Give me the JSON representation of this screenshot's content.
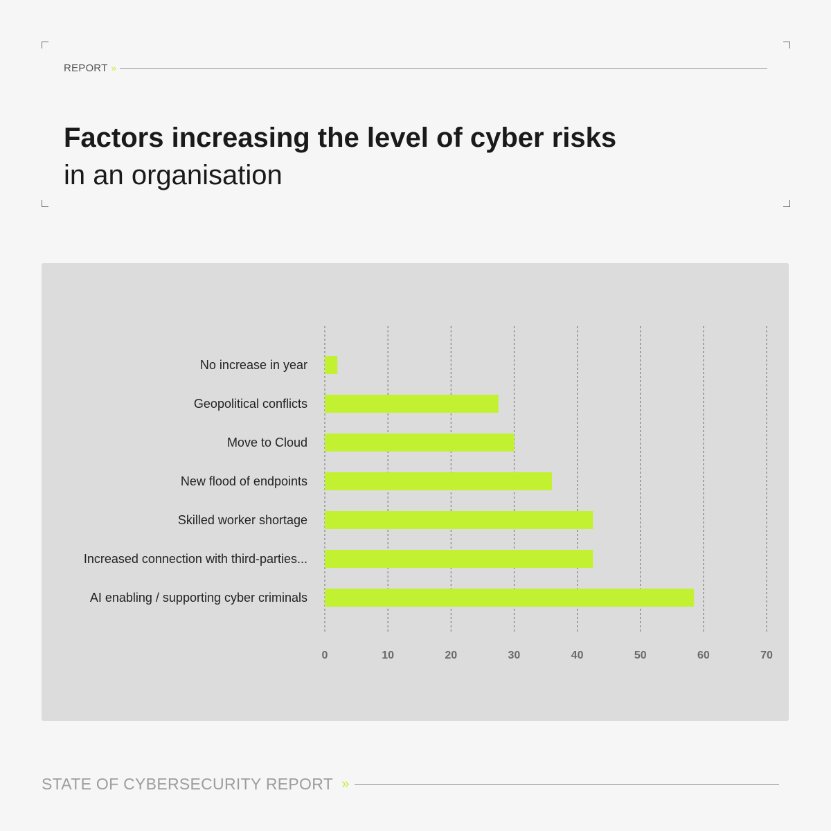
{
  "header": {
    "report_label": "REPORT",
    "chevrons": "››"
  },
  "title_bold": "Factors increasing the level of cyber risks",
  "title_regular": "in an organisation",
  "chart_data": {
    "type": "bar",
    "orientation": "horizontal",
    "categories": [
      "No increase in year",
      "Geopolitical conflicts",
      "Move to Cloud",
      "New flood of endpoints",
      "Skilled worker shortage",
      "Increased connection with third-parties...",
      "AI enabling / supporting cyber criminals"
    ],
    "values": [
      2,
      27.5,
      30,
      36,
      42.5,
      42.5,
      58.5
    ],
    "xlim": [
      0,
      70
    ],
    "xticks": [
      0,
      10,
      20,
      30,
      40,
      50,
      60,
      70
    ],
    "grid": true,
    "bar_color": "#c1f130",
    "grid_color": "#707070",
    "tick_label_color": "#6a6a6a",
    "category_label_color": "#222222"
  },
  "footer": {
    "label": "STATE OF CYBERSECURITY REPORT",
    "chevrons": "››"
  }
}
